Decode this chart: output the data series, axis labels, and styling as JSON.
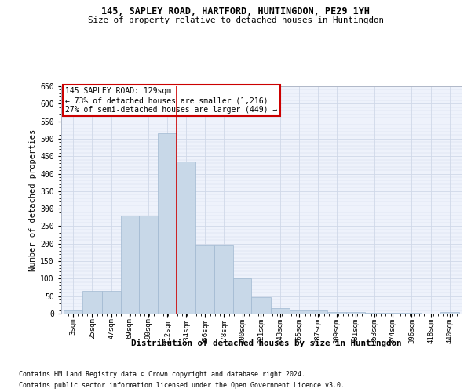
{
  "title1": "145, SAPLEY ROAD, HARTFORD, HUNTINGDON, PE29 1YH",
  "title2": "Size of property relative to detached houses in Huntingdon",
  "xlabel": "Distribution of detached houses by size in Huntingdon",
  "ylabel": "Number of detached properties",
  "footnote1": "Contains HM Land Registry data © Crown copyright and database right 2024.",
  "footnote2": "Contains public sector information licensed under the Open Government Licence v3.0.",
  "annotation_line1": "145 SAPLEY ROAD: 129sqm",
  "annotation_line2": "← 73% of detached houses are smaller (1,216)",
  "annotation_line3": "27% of semi-detached houses are larger (449) →",
  "bar_left_edges": [
    3,
    25,
    47,
    69,
    90,
    112,
    134,
    156,
    178,
    200,
    221,
    243,
    265,
    287,
    309,
    331,
    353,
    374,
    396,
    418,
    440
  ],
  "bar_widths": [
    22,
    22,
    22,
    21,
    22,
    22,
    22,
    22,
    22,
    21,
    22,
    22,
    22,
    22,
    22,
    22,
    21,
    22,
    22,
    22,
    22
  ],
  "bar_heights": [
    8,
    65,
    65,
    280,
    280,
    515,
    435,
    195,
    195,
    100,
    47,
    15,
    10,
    8,
    5,
    4,
    3,
    3,
    2,
    1,
    4
  ],
  "bar_color": "#c8d8e8",
  "bar_edge_color": "#a0b8d0",
  "vline_x": 134,
  "vline_color": "#cc0000",
  "annotation_box_color": "#cc0000",
  "grid_color": "#d0d8e8",
  "background_color": "#eef2fb",
  "ylim": [
    0,
    650
  ],
  "yticks": [
    0,
    50,
    100,
    150,
    200,
    250,
    300,
    350,
    400,
    450,
    500,
    550,
    600,
    650
  ],
  "tick_labels": [
    "3sqm",
    "25sqm",
    "47sqm",
    "69sqm",
    "90sqm",
    "112sqm",
    "134sqm",
    "156sqm",
    "178sqm",
    "200sqm",
    "221sqm",
    "243sqm",
    "265sqm",
    "287sqm",
    "309sqm",
    "331sqm",
    "353sqm",
    "374sqm",
    "396sqm",
    "418sqm",
    "440sqm"
  ]
}
